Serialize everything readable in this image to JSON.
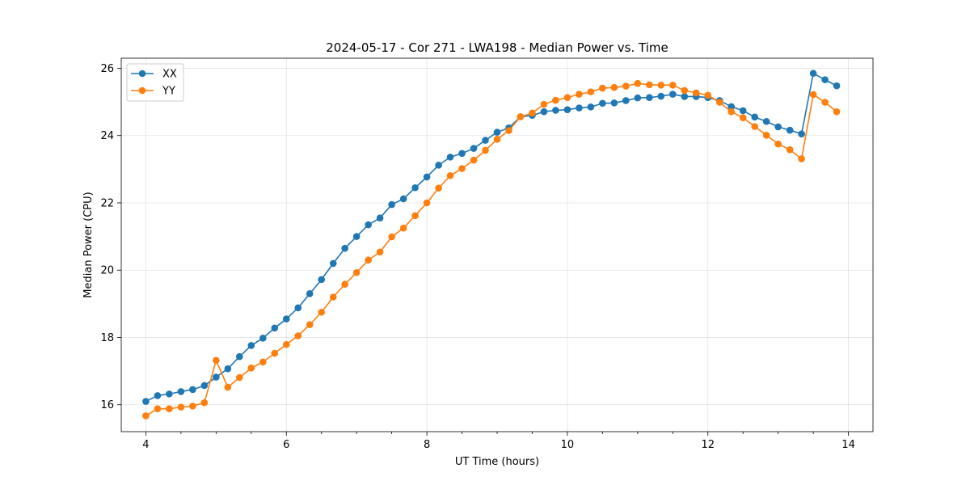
{
  "chart_data": {
    "type": "line",
    "title": "2024-05-17 - Cor 271 - LWA198 - Median Power vs. Time",
    "xlabel": "UT Time (hours)",
    "ylabel": "Median Power (CPU)",
    "xlim": [
      3.65,
      14.35
    ],
    "ylim": [
      15.2,
      26.3
    ],
    "xticks": [
      4,
      6,
      8,
      10,
      12,
      14
    ],
    "xtick_labels": [
      "4",
      "6",
      "8",
      "10",
      "12",
      "14"
    ],
    "yticks": [
      16,
      18,
      20,
      22,
      24,
      26
    ],
    "ytick_labels": [
      "16",
      "18",
      "20",
      "22",
      "24",
      "26"
    ],
    "grid": true,
    "legend_position": "top-left",
    "x": [
      4.0,
      4.167,
      4.333,
      4.5,
      4.667,
      4.833,
      5.0,
      5.167,
      5.333,
      5.5,
      5.667,
      5.833,
      6.0,
      6.167,
      6.333,
      6.5,
      6.667,
      6.833,
      7.0,
      7.167,
      7.333,
      7.5,
      7.667,
      7.833,
      8.0,
      8.167,
      8.333,
      8.5,
      8.667,
      8.833,
      9.0,
      9.167,
      9.333,
      9.5,
      9.667,
      9.833,
      10.0,
      10.167,
      10.333,
      10.5,
      10.667,
      10.833,
      11.0,
      11.167,
      11.333,
      11.5,
      11.667,
      11.833,
      12.0,
      12.167,
      12.333,
      12.5,
      12.667,
      12.833,
      13.0,
      13.167,
      13.333,
      13.5,
      13.667,
      13.833
    ],
    "series": [
      {
        "name": "XX",
        "color": "#1f77b4",
        "values": [
          16.1,
          16.27,
          16.32,
          16.39,
          16.45,
          16.57,
          16.82,
          17.07,
          17.43,
          17.76,
          17.98,
          18.28,
          18.55,
          18.88,
          19.3,
          19.72,
          20.2,
          20.65,
          21.0,
          21.35,
          21.55,
          21.95,
          22.12,
          22.45,
          22.77,
          23.12,
          23.36,
          23.47,
          23.62,
          23.86,
          24.1,
          24.23,
          24.56,
          24.6,
          24.71,
          24.75,
          24.77,
          24.82,
          24.85,
          24.96,
          24.97,
          25.04,
          25.12,
          25.13,
          25.17,
          25.23,
          25.16,
          25.16,
          25.13,
          25.04,
          24.86,
          24.74,
          24.55,
          24.42,
          24.26,
          24.16,
          24.05,
          25.85,
          25.66,
          25.48
        ]
      },
      {
        "name": "YY",
        "color": "#ff7f0e",
        "values": [
          15.67,
          15.88,
          15.88,
          15.93,
          15.96,
          16.06,
          17.32,
          16.52,
          16.81,
          17.09,
          17.27,
          17.53,
          17.79,
          18.05,
          18.38,
          18.75,
          19.2,
          19.58,
          19.93,
          20.3,
          20.54,
          20.99,
          21.25,
          21.62,
          22.0,
          22.44,
          22.81,
          23.02,
          23.27,
          23.56,
          23.89,
          24.15,
          24.56,
          24.67,
          24.93,
          25.05,
          25.13,
          25.23,
          25.3,
          25.41,
          25.43,
          25.47,
          25.55,
          25.51,
          25.5,
          25.5,
          25.34,
          25.27,
          25.2,
          24.99,
          24.71,
          24.53,
          24.27,
          24.01,
          23.75,
          23.58,
          23.31,
          25.22,
          24.99,
          24.71
        ]
      }
    ]
  }
}
